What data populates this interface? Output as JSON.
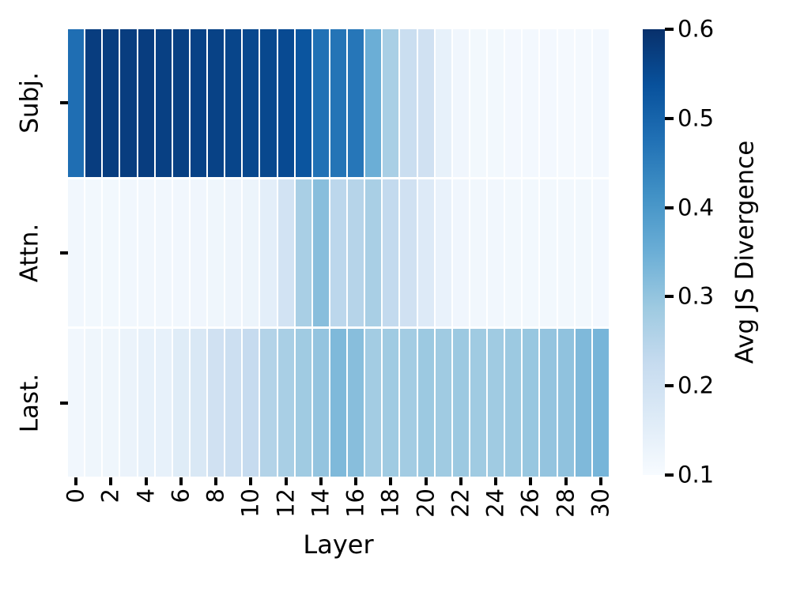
{
  "figure": {
    "xlabel": "Layer",
    "row_labels": [
      "Subj.",
      "Attn.",
      "Last."
    ],
    "x_tick_labels": [
      "0",
      "2",
      "4",
      "6",
      "8",
      "10",
      "12",
      "14",
      "16",
      "18",
      "20",
      "22",
      "24",
      "26",
      "28",
      "30"
    ],
    "colorbar": {
      "label": "Avg JS Divergence",
      "tick_labels": [
        "0.6",
        "0.5",
        "0.4",
        "0.3",
        "0.2",
        "0.1"
      ]
    }
  },
  "colors": {
    "background": "#ffffff",
    "text": "#000000",
    "blues_anchors": [
      "#f7fbff",
      "#deebf7",
      "#c6dbef",
      "#9ecae1",
      "#6baed6",
      "#4292c6",
      "#2171b5",
      "#08519c",
      "#08306b"
    ]
  },
  "chart_data": {
    "type": "heatmap",
    "title": "",
    "xlabel": "Layer",
    "ylabel": "",
    "colorbar_label": "Avg JS Divergence",
    "colormap": "Blues",
    "vmin": 0.1,
    "vmax": 0.6,
    "colorbar_ticks": [
      0.6,
      0.5,
      0.4,
      0.3,
      0.2,
      0.1
    ],
    "x": [
      0,
      1,
      2,
      3,
      4,
      5,
      6,
      7,
      8,
      9,
      10,
      11,
      12,
      13,
      14,
      15,
      16,
      17,
      18,
      19,
      20,
      21,
      22,
      23,
      24,
      25,
      26,
      27,
      28,
      29,
      30
    ],
    "x_ticks_shown_every": 2,
    "categories_y": [
      "Subj.",
      "Attn.",
      "Last."
    ],
    "series": [
      {
        "name": "Subj.",
        "values": [
          0.48,
          0.575,
          0.575,
          0.575,
          0.575,
          0.57,
          0.57,
          0.565,
          0.565,
          0.56,
          0.555,
          0.555,
          0.55,
          0.53,
          0.475,
          0.47,
          0.465,
          0.35,
          0.27,
          0.215,
          0.2,
          0.14,
          0.118,
          0.112,
          0.112,
          0.11,
          0.11,
          0.11,
          0.108,
          0.108,
          0.11
        ]
      },
      {
        "name": "Attn.",
        "values": [
          0.115,
          0.113,
          0.113,
          0.114,
          0.115,
          0.115,
          0.116,
          0.118,
          0.12,
          0.122,
          0.128,
          0.15,
          0.195,
          0.27,
          0.315,
          0.24,
          0.25,
          0.27,
          0.23,
          0.2,
          0.165,
          0.135,
          0.118,
          0.115,
          0.114,
          0.113,
          0.113,
          0.112,
          0.112,
          0.112,
          0.11
        ]
      },
      {
        "name": "Last.",
        "values": [
          0.115,
          0.12,
          0.12,
          0.13,
          0.14,
          0.14,
          0.16,
          0.175,
          0.2,
          0.21,
          0.225,
          0.255,
          0.27,
          0.285,
          0.3,
          0.325,
          0.315,
          0.28,
          0.285,
          0.28,
          0.29,
          0.285,
          0.29,
          0.285,
          0.285,
          0.29,
          0.295,
          0.3,
          0.305,
          0.325,
          0.335
        ]
      }
    ],
    "legend_position": "none",
    "grid": false
  }
}
